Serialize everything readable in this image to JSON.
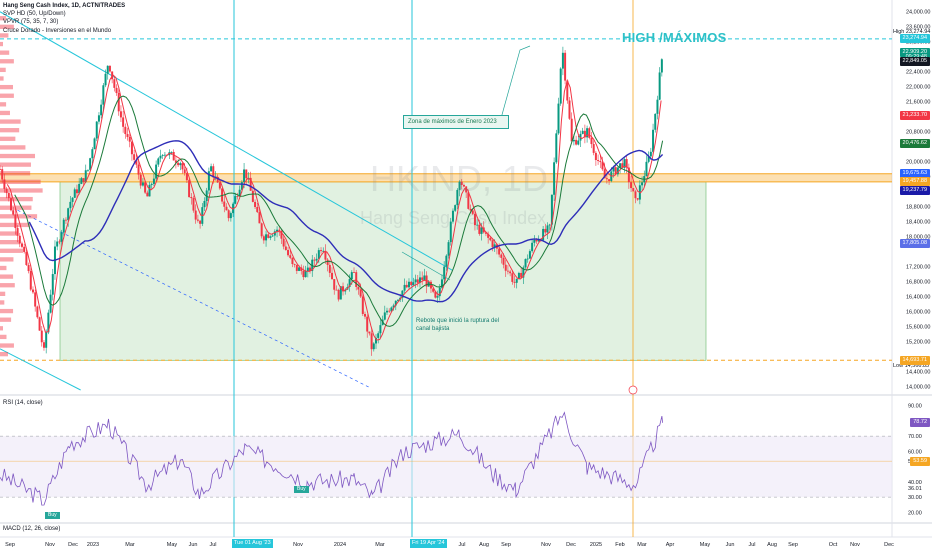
{
  "legend": {
    "title": "Hang Seng Cash Index, 1D, ACTN/TRADES",
    "line2": "SVP HD (50, Up/Down)",
    "line3": "VPVR (75, 35, 7, 30)",
    "line4": "Cruce Dorado - Inversiones en el Mundo"
  },
  "watermark": {
    "symbol": "HKIND, 1D",
    "name": "Hang Seng Cash Index"
  },
  "annotations": {
    "zona": "Zona de máximos de Enero 2023",
    "rebote": "Rebote que inició la ruptura del canal bajista",
    "headline": "HIGH /MÁXIMOS"
  },
  "rsi_label": "RSI (14, close)",
  "macd_label": "MACD (12, 26, close)",
  "price_axis": {
    "ticks": [
      "24,000.00",
      "23,600.00",
      "23,200.00",
      "22,400.00",
      "22,000.00",
      "21,600.00",
      "20,800.00",
      "20,000.00",
      "19,600.00",
      "18,800.00",
      "18,400.00",
      "18,000.00",
      "17,200.00",
      "16,800.00",
      "16,400.00",
      "16,000.00",
      "15,600.00",
      "15,200.00",
      "14,400.00",
      "14,000.00"
    ],
    "tick_values": [
      24000,
      23600,
      23200,
      22400,
      22000,
      21600,
      20800,
      20000,
      19600,
      18800,
      18400,
      18000,
      17200,
      16800,
      16400,
      16000,
      15600,
      15200,
      14400,
      14000
    ]
  },
  "price_badges": [
    {
      "label": "23,274.94",
      "value": 23274.94,
      "color": "#26c6da"
    },
    {
      "label": "22,909.20",
      "value": 22909.2,
      "color": "#089981"
    },
    {
      "label": "09:29:48",
      "value": 22780,
      "color": "#089981"
    },
    {
      "label": "22,849.05",
      "value": 22670,
      "color": "#131722"
    },
    {
      "label": "21,233.70",
      "value": 21233.7,
      "color": "#f23645"
    },
    {
      "label": "20,476.62",
      "value": 20476.62,
      "color": "#1b7a3a"
    },
    {
      "label": "19,675.63",
      "value": 19675.63,
      "color": "#2962ff"
    },
    {
      "label": "19,457.88",
      "value": 19457.88,
      "color": "#f5a623"
    },
    {
      "label": "19,237.79",
      "value": 19237.79,
      "color": "#1a1aa8"
    },
    {
      "label": "17,805.08",
      "value": 17805.08,
      "color": "#5b6fe8"
    },
    {
      "label": "14,693.71",
      "value": 14693.71,
      "color": "#f5a623"
    }
  ],
  "high_low": {
    "high_text": "High",
    "high_value": "23,274.94",
    "low_text": "Low",
    "low_value": "14,566.85"
  },
  "rsi_axis": {
    "ticks": [
      "90.00",
      "70.00",
      "60.00",
      "53.74",
      "40.00",
      "36.01",
      "30.00",
      "20.00"
    ],
    "tick_values": [
      90,
      70,
      60,
      53.74,
      40,
      36.01,
      30,
      20
    ],
    "badges": [
      {
        "label": "78.72",
        "value": 78.72,
        "color": "#7e57c2"
      },
      {
        "label": "53.59",
        "value": 53.59,
        "color": "#f5a623"
      }
    ]
  },
  "time_axis": {
    "labels": [
      "Sep",
      "Nov",
      "Dec",
      "2023",
      "Mar",
      "May",
      "Jun",
      "Jul",
      "Sep",
      "Nov",
      "2024",
      "Mar",
      "May",
      "Jun",
      "Jul",
      "Aug",
      "Sep",
      "Nov",
      "Dec",
      "2025",
      "Feb",
      "Mar",
      "Apr",
      "May",
      "Jun",
      "Jul",
      "Aug",
      "Sep",
      "Oct",
      "Nov",
      "Dec"
    ],
    "label_x": [
      10,
      50,
      73,
      93,
      130,
      172,
      193,
      213,
      258,
      298,
      340,
      380,
      420,
      441,
      462,
      484,
      506,
      546,
      571,
      596,
      620,
      642,
      670,
      705,
      730,
      752,
      772,
      793,
      833,
      855,
      889
    ],
    "highlight_dates": [
      {
        "label": "Tue 01 Aug '23",
        "x": 234
      },
      {
        "label": "Fri 19 Apr '24",
        "x": 412
      }
    ]
  },
  "buy_tags": [
    {
      "label": "Buy",
      "x": 45,
      "y": 512
    },
    {
      "label": "Buy",
      "x": 294,
      "y": 486
    }
  ],
  "colors": {
    "candle_up": "#089981",
    "candle_down": "#f23645",
    "sma_fast": "#f23645",
    "sma_mid": "#1b7a3a",
    "sma_slow": "#2e2eb8",
    "channel": "#26c6da",
    "band": "#f5a623",
    "zone_fill": "#c8e6c9",
    "rsi": "#7e57c2",
    "rsi_bg": "#ede7f6"
  },
  "chart_data": {
    "type": "line",
    "title": "Hang Seng Cash Index, 1D",
    "x_dates_note": "",
    "price_series": {
      "name": "close",
      "points": [
        [
          "2022-09-01",
          19800
        ],
        [
          "2022-09-20",
          18500
        ],
        [
          "2022-10-10",
          17000
        ],
        [
          "2022-10-31",
          14900
        ],
        [
          "2022-11-15",
          17600
        ],
        [
          "2022-12-05",
          18900
        ],
        [
          "2022-12-30",
          19780
        ],
        [
          "2023-01-27",
          22700
        ],
        [
          "2023-02-15",
          21000
        ],
        [
          "2023-03-20",
          19000
        ],
        [
          "2023-04-10",
          20300
        ],
        [
          "2023-05-05",
          20000
        ],
        [
          "2023-05-31",
          18200
        ],
        [
          "2023-06-15",
          19900
        ],
        [
          "2023-07-10",
          18500
        ],
        [
          "2023-08-01",
          19800
        ],
        [
          "2023-08-25",
          18000
        ],
        [
          "2023-09-15",
          18200
        ],
        [
          "2023-10-05",
          17200
        ],
        [
          "2023-10-25",
          17000
        ],
        [
          "2023-11-15",
          17800
        ],
        [
          "2023-12-05",
          16400
        ],
        [
          "2023-12-28",
          17000
        ],
        [
          "2024-01-22",
          14960
        ],
        [
          "2024-02-10",
          16000
        ],
        [
          "2024-03-05",
          16600
        ],
        [
          "2024-04-02",
          16900
        ],
        [
          "2024-04-19",
          16200
        ],
        [
          "2024-05-20",
          19600
        ],
        [
          "2024-06-10",
          18300
        ],
        [
          "2024-07-05",
          17800
        ],
        [
          "2024-08-05",
          16700
        ],
        [
          "2024-08-30",
          17900
        ],
        [
          "2024-09-20",
          18200
        ],
        [
          "2024-10-07",
          23100
        ],
        [
          "2024-10-20",
          20500
        ],
        [
          "2024-11-10",
          20800
        ],
        [
          "2024-12-05",
          19500
        ],
        [
          "2024-12-30",
          20000
        ],
        [
          "2025-01-15",
          18900
        ],
        [
          "2025-02-04",
          20200
        ],
        [
          "2025-02-21",
          22900
        ]
      ]
    },
    "high": 23274.94,
    "low": 14566.85,
    "zones": [
      {
        "name": "band",
        "from": 19457.88,
        "to": 19675.63
      },
      {
        "name": "range",
        "from": 14693.71,
        "to": 19457.88
      }
    ],
    "rsi_series": {
      "name": "RSI",
      "points": [
        [
          "2022-09-01",
          45
        ],
        [
          "2022-10-31",
          28
        ],
        [
          "2022-12-05",
          65
        ],
        [
          "2023-01-27",
          78
        ],
        [
          "2023-03-20",
          38
        ],
        [
          "2023-05-05",
          55
        ],
        [
          "2023-05-31",
          32
        ],
        [
          "2023-08-01",
          62
        ],
        [
          "2023-10-25",
          40
        ],
        [
          "2023-12-28",
          42
        ],
        [
          "2024-01-22",
          30
        ],
        [
          "2024-03-05",
          60
        ],
        [
          "2024-05-20",
          72
        ],
        [
          "2024-07-05",
          45
        ],
        [
          "2024-08-05",
          35
        ],
        [
          "2024-10-07",
          85
        ],
        [
          "2024-11-10",
          50
        ],
        [
          "2025-01-15",
          38
        ],
        [
          "2025-02-21",
          78.72
        ]
      ]
    },
    "rsi_bands": [
      30,
      70
    ],
    "ylim_price": [
      13900,
      24100
    ],
    "ylim_rsi": [
      15,
      95
    ]
  }
}
